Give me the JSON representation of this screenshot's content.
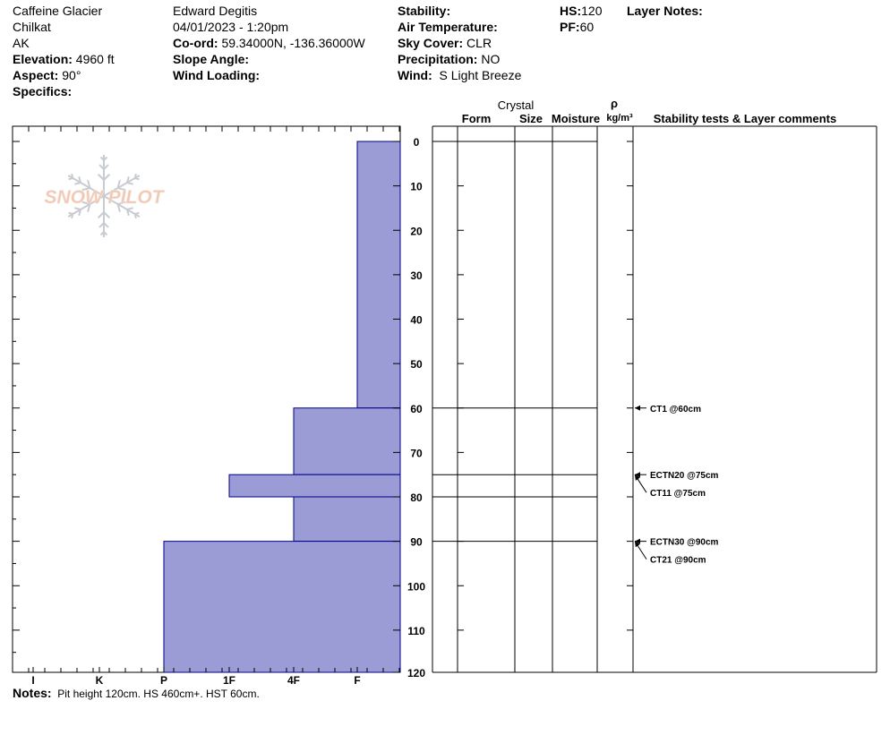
{
  "location": {
    "name": "Caffeine Glacier",
    "range": "Chilkat",
    "state": "AK",
    "elevation_label": "Elevation:",
    "elevation": "4960 ft",
    "aspect_label": "Aspect:",
    "aspect": "90°",
    "specifics_label": "Specifics:"
  },
  "observer": {
    "name": "Edward Degitis",
    "datetime": "04/01/2023 - 1:20pm",
    "coord_label": "Co-ord:",
    "coord": "59.34000N, -136.36000W",
    "slope_label": "Slope Angle:",
    "wind_loading_label": "Wind Loading:"
  },
  "conditions": {
    "stability_label": "Stability:",
    "air_temp_label": "Air Temperature:",
    "sky_label": "Sky Cover:",
    "sky": "CLR",
    "precip_label": "Precipitation:",
    "precip": "NO",
    "wind_label": "Wind:",
    "wind": "S Light Breeze"
  },
  "depths": {
    "hs_label": "HS:",
    "hs": "120",
    "pf_label": "PF:",
    "pf": "60",
    "layer_notes_label": "Layer Notes:"
  },
  "logo": {
    "text": "SNOW PILOT"
  },
  "notes": {
    "label": "Notes:",
    "text": "Pit height 120cm. HS 460cm+. HST 60cm."
  },
  "colors": {
    "hardness_fill": "#9b9bd6",
    "hardness_stroke": "#00008b",
    "logo_text": "#f0c8b4",
    "logo_flake": "#c8ccd2"
  },
  "chart_data": {
    "type": "bar",
    "title": "",
    "hardness_axis": {
      "ticks": [
        "I",
        "K",
        "P",
        "1F",
        "4F",
        "F"
      ],
      "direction": "hardness increases leftward"
    },
    "depth_axis": {
      "range": [
        0,
        120
      ],
      "ticks": [
        0,
        10,
        20,
        30,
        40,
        50,
        60,
        70,
        80,
        90,
        100,
        110,
        120
      ],
      "direction": "depth increases downward"
    },
    "hardness_profile": [
      {
        "top": 0,
        "bottom": 60,
        "hardness": "F"
      },
      {
        "top": 60,
        "bottom": 75,
        "hardness": "4F"
      },
      {
        "top": 75,
        "bottom": 80,
        "hardness": "1F"
      },
      {
        "top": 80,
        "bottom": 90,
        "hardness": "4F"
      },
      {
        "top": 90,
        "bottom": 120,
        "hardness": "P"
      }
    ],
    "layer_boundaries": [
      0,
      60,
      75,
      80,
      90
    ],
    "table_headers": {
      "crystal": "Crystal",
      "form": "Form",
      "size": "Size",
      "moisture": "Moisture",
      "rho": "ρ",
      "density_unit": "kg/m³",
      "comments": "Stability tests & Layer comments"
    },
    "stability_tests": [
      {
        "depth": 60,
        "label": "CT1 @60cm",
        "slot": 0
      },
      {
        "depth": 75,
        "label": "ECTN20 @75cm",
        "slot": 0
      },
      {
        "depth": 75,
        "label": "CT11 @75cm",
        "slot": 1
      },
      {
        "depth": 90,
        "label": "ECTN30 @90cm",
        "slot": 0
      },
      {
        "depth": 90,
        "label": "CT21 @90cm",
        "slot": 1
      }
    ]
  }
}
